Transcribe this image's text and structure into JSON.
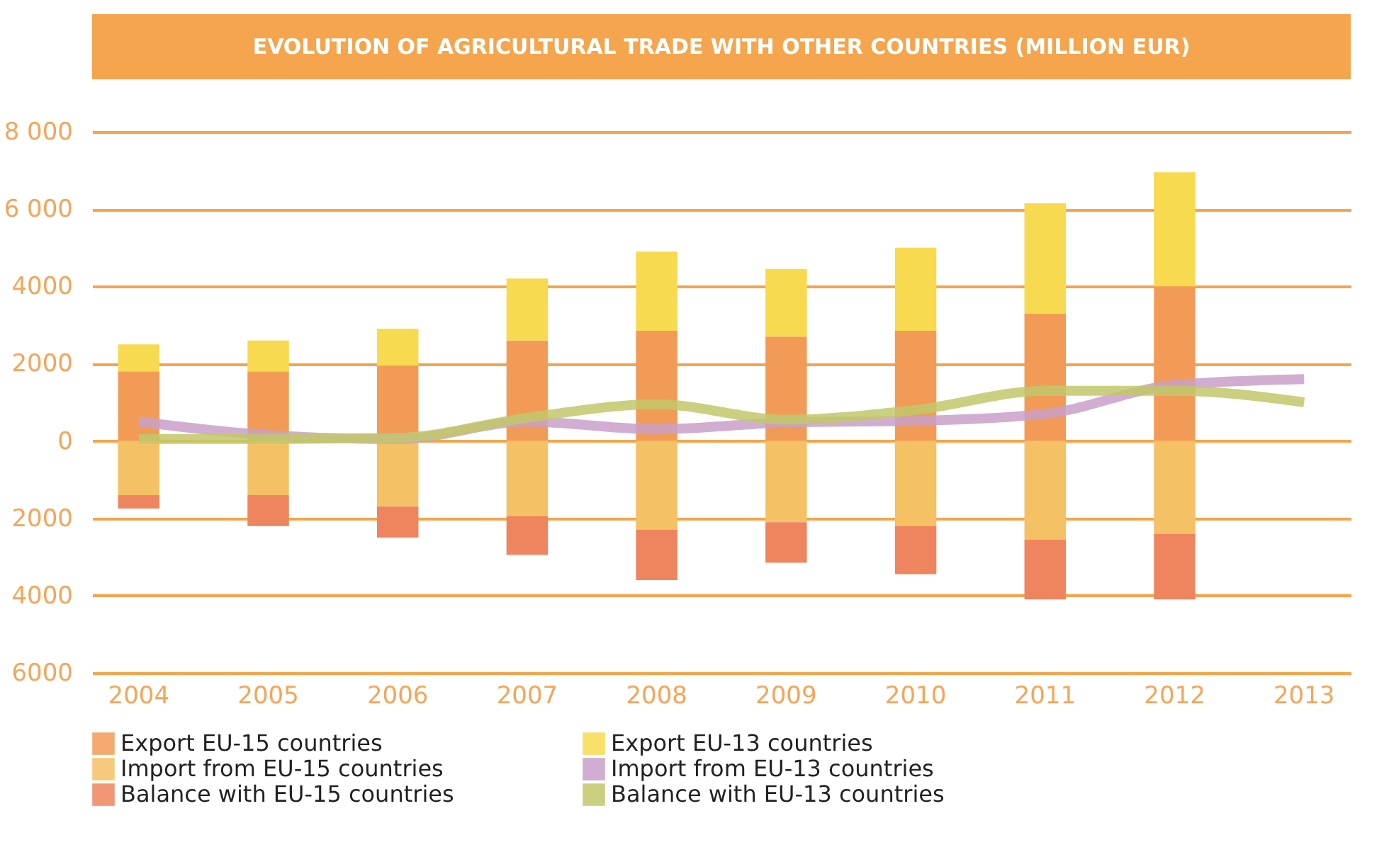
{
  "chart_data": {
    "type": "bar",
    "title": "EVOLUTION OF AGRICULTURAL TRADE WITH OTHER COUNTRIES (MILLION EUR)",
    "categories": [
      "2004",
      "2005",
      "2006",
      "2007",
      "2008",
      "2009",
      "2010",
      "2011",
      "2012",
      "2013"
    ],
    "stacked": true,
    "series": [
      {
        "name": "Export EU-15 countries",
        "color": "#f29b57",
        "values": [
          1800,
          1800,
          1950,
          2600,
          2850,
          2700,
          2850,
          3300,
          4000,
          null
        ]
      },
      {
        "name": "Export EU-13 countries",
        "color": "#f7da50",
        "values": [
          700,
          800,
          950,
          1600,
          2050,
          1750,
          2150,
          2850,
          2950,
          null
        ]
      },
      {
        "name": "Import from EU-15 countries",
        "color": "#f4c165",
        "values": [
          -1400,
          -1400,
          -1700,
          -1950,
          -2300,
          -2100,
          -2200,
          -2550,
          -2400,
          null
        ]
      },
      {
        "name": "Import from EU-13 countries",
        "type": "line",
        "color": "#c9a0c9",
        "values": [
          500,
          150,
          50,
          500,
          300,
          480,
          520,
          700,
          1450,
          1600
        ]
      },
      {
        "name": "Balance with EU-15 countries",
        "color": "#ee855e",
        "values": [
          -350,
          -800,
          -800,
          -1000,
          -1300,
          -1050,
          -1250,
          -1550,
          -1700,
          null
        ]
      },
      {
        "name": "Balance with EU-13 countries",
        "type": "line",
        "color": "#c2c86a",
        "values": [
          50,
          50,
          80,
          600,
          950,
          550,
          800,
          1300,
          1300,
          1000
        ]
      }
    ],
    "ylim": [
      -6000,
      8000
    ],
    "yticks": [
      {
        "value": 8000,
        "label": "8 000"
      },
      {
        "value": 6000,
        "label": "6 000"
      },
      {
        "value": 4000,
        "label": "4000"
      },
      {
        "value": 2000,
        "label": "2000"
      },
      0,
      {
        "value": -2000,
        "label": "2000"
      },
      {
        "value": -4000,
        "label": "4000"
      },
      {
        "value": -6000,
        "label": "6000"
      }
    ],
    "grid": "y",
    "legend": "bottom"
  }
}
